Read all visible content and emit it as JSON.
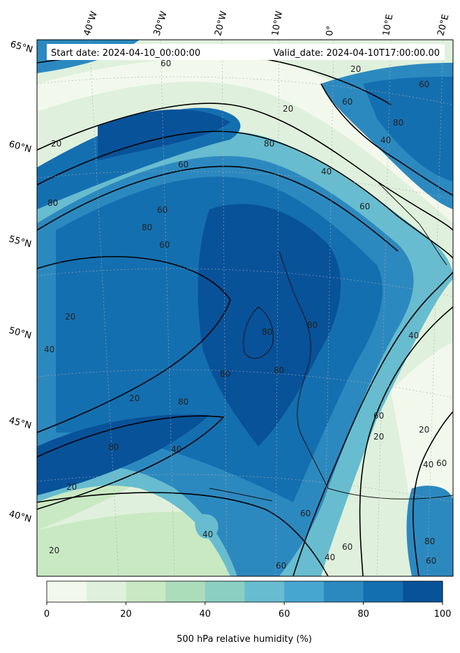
{
  "header": {
    "start_date": "Start date: 2024-04-10_00:00:00",
    "valid_date": "Valid_date: 2024-04-10T17:00:00.00"
  },
  "map": {
    "lon_labels": [
      "40°W",
      "30°W",
      "20°W",
      "10°W",
      "0°",
      "10°E",
      "20°E"
    ],
    "lat_labels": [
      "65°N",
      "60°N",
      "55°N",
      "50°N",
      "45°N",
      "40°N"
    ],
    "contour_labels": [
      "20",
      "40",
      "60",
      "80"
    ]
  },
  "colorbar": {
    "label": "500 hPa relative humidity (%)",
    "ticks": [
      "0",
      "20",
      "40",
      "60",
      "80",
      "100"
    ],
    "range": [
      0,
      100
    ],
    "step": 10,
    "colors": [
      "#f2f9ec",
      "#dff1dc",
      "#c9e9c3",
      "#acddbb",
      "#8acfc2",
      "#67bccf",
      "#47a6d0",
      "#2c89c0",
      "#146fb0",
      "#08529a"
    ]
  }
}
